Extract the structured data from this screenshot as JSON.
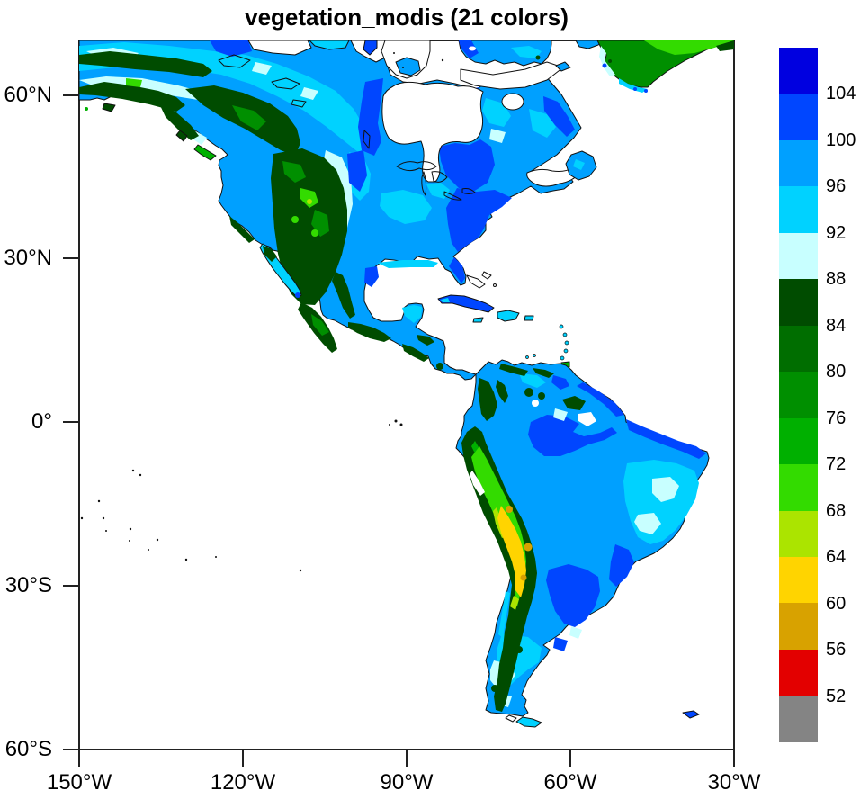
{
  "title": "vegetation_modis (21 colors)",
  "axes": {
    "y_ticks": [
      {
        "label": "60°N",
        "lat": 60
      },
      {
        "label": "30°N",
        "lat": 30
      },
      {
        "label": "0°",
        "lat": 0
      },
      {
        "label": "30°S",
        "lat": -30
      },
      {
        "label": "60°S",
        "lat": -60
      }
    ],
    "x_ticks": [
      {
        "label": "150°W",
        "lon_w": 150
      },
      {
        "label": "120°W",
        "lon_w": 120
      },
      {
        "label": "90°W",
        "lon_w": 90
      },
      {
        "label": "60°W",
        "lon_w": 60
      },
      {
        "label": "30°W",
        "lon_w": 30
      }
    ]
  },
  "colorbar": {
    "colors": [
      "#0000E0",
      "#0046FF",
      "#00A0FF",
      "#00D2FF",
      "#C8FFFF",
      "#004C00",
      "#006E00",
      "#008F00",
      "#00B000",
      "#33DB00",
      "#ABE400",
      "#FFD400",
      "#D8A200",
      "#E30000",
      "#848484"
    ],
    "boundary_labels": [
      "104",
      "100",
      "96",
      "92",
      "88",
      "84",
      "80",
      "76",
      "72",
      "68",
      "64",
      "60",
      "56",
      "52"
    ]
  },
  "map": {
    "ocean_color": "#FFFFFF",
    "coastline_color": "#111111",
    "frame_color": "#222222"
  }
}
